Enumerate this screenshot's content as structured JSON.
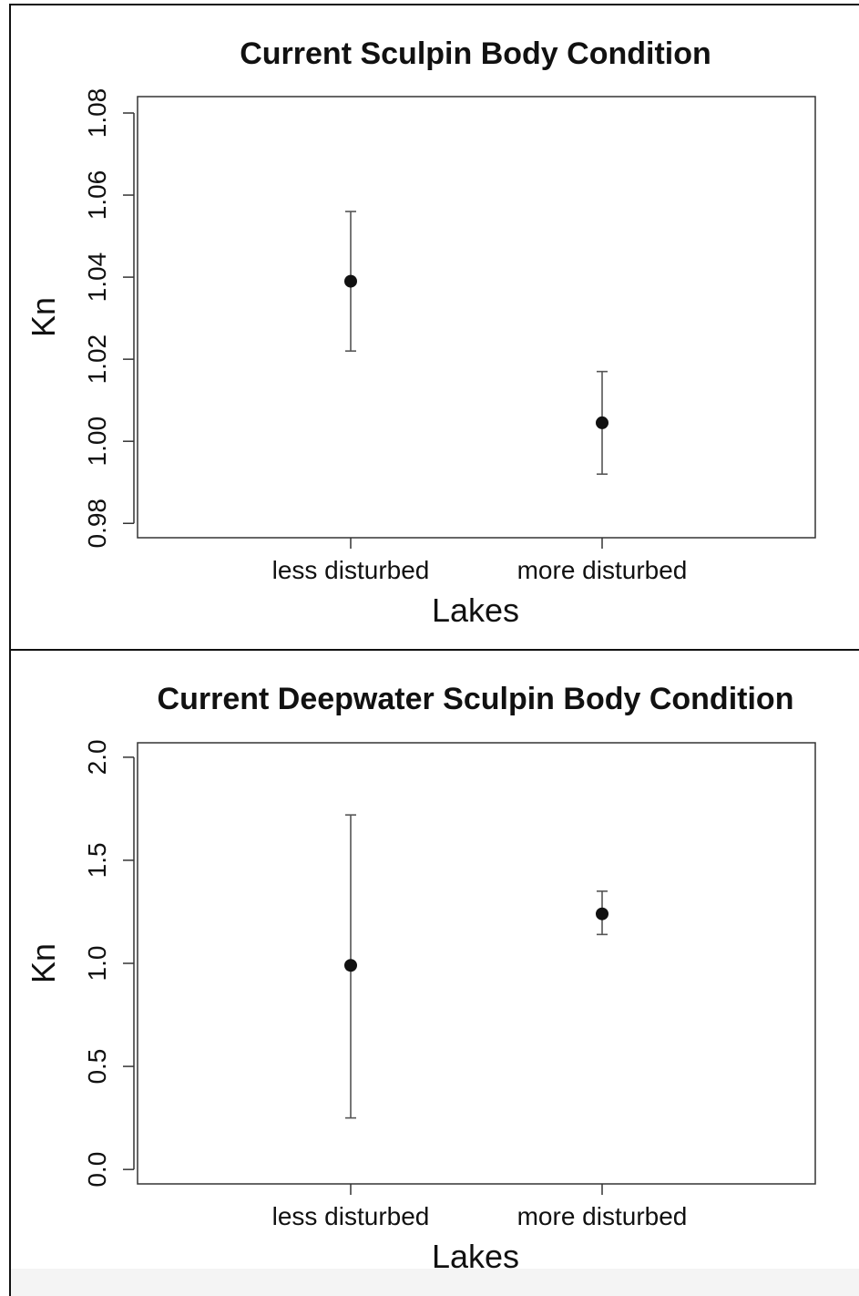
{
  "chart_data": [
    {
      "type": "scatter",
      "title": "Current Sculpin Body Condition",
      "xlabel": "Lakes",
      "ylabel": "Kn",
      "categories": [
        "less disturbed",
        "more disturbed"
      ],
      "y_ticks": [
        "0.98",
        "1.00",
        "1.02",
        "1.04",
        "1.06",
        "1.08"
      ],
      "y_tick_values": [
        0.98,
        1.0,
        1.02,
        1.04,
        1.06,
        1.08
      ],
      "ylim": [
        0.9765,
        1.084
      ],
      "points": [
        {
          "category": "less disturbed",
          "mean": 1.039,
          "lower": 1.022,
          "upper": 1.056
        },
        {
          "category": "more disturbed",
          "mean": 1.0045,
          "lower": 0.992,
          "upper": 1.017
        }
      ],
      "grid": false,
      "legend": "none"
    },
    {
      "type": "scatter",
      "title": "Current Deepwater Sculpin Body Condition",
      "xlabel": "Lakes",
      "ylabel": "Kn",
      "categories": [
        "less disturbed",
        "more disturbed"
      ],
      "y_ticks": [
        "0.0",
        "0.5",
        "1.0",
        "1.5",
        "2.0"
      ],
      "y_tick_values": [
        0.0,
        0.5,
        1.0,
        1.5,
        2.0
      ],
      "ylim": [
        -0.07,
        2.07
      ],
      "points": [
        {
          "category": "less disturbed",
          "mean": 0.99,
          "lower": 0.25,
          "upper": 1.72
        },
        {
          "category": "more disturbed",
          "mean": 1.24,
          "lower": 1.14,
          "upper": 1.35
        }
      ],
      "grid": false,
      "legend": "none"
    }
  ],
  "colors": {
    "ink": "#111111",
    "frame": "#333333",
    "whisker": "#555555"
  }
}
